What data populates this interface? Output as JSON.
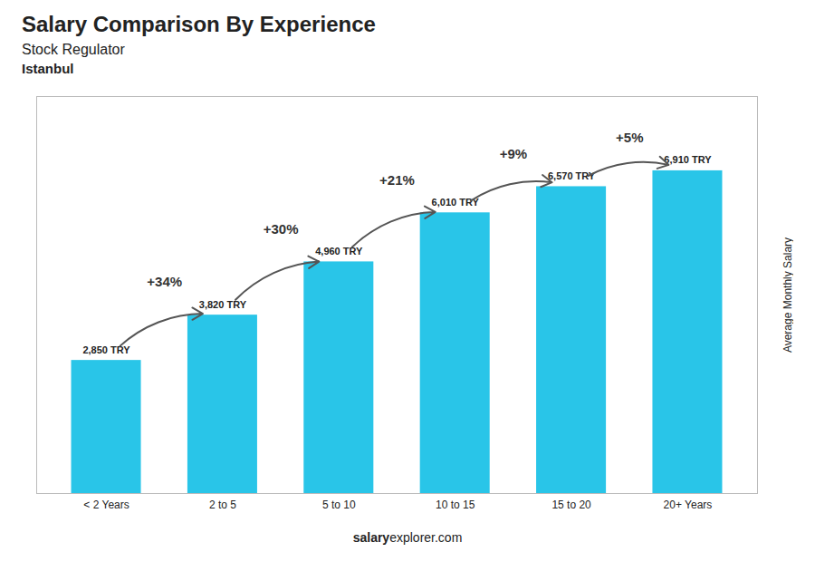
{
  "chart_data": {
    "type": "bar",
    "title": "Salary Comparison By Experience",
    "subtitle": "Stock Regulator",
    "city": "Istanbul",
    "categories": [
      "< 2 Years",
      "2 to 5",
      "5 to 10",
      "10 to 15",
      "15 to 20",
      "20+ Years"
    ],
    "values": [
      2850,
      3820,
      4960,
      6010,
      6570,
      6910
    ],
    "value_labels": [
      "2,850 TRY",
      "3,820 TRY",
      "4,960 TRY",
      "6,010 TRY",
      "6,570 TRY",
      "6,910 TRY"
    ],
    "data_labels": true,
    "color": "#29C5E8",
    "ylabel": "Average Monthly Salary",
    "ylim": [
      0,
      8500
    ],
    "tick_labels": "x",
    "grid": false,
    "annotations": [
      {
        "text": "+34%",
        "between": [
          "< 2 Years",
          "2 to 5"
        ]
      },
      {
        "text": "+30%",
        "between": [
          "2 to 5",
          "5 to 10"
        ]
      },
      {
        "text": "+21%",
        "between": [
          "5 to 10",
          "10 to 15"
        ]
      },
      {
        "text": "+9%",
        "between": [
          "10 to 15",
          "15 to 20"
        ]
      },
      {
        "text": "+5%",
        "between": [
          "15 to 20",
          "20+ Years"
        ]
      }
    ],
    "watermark": [
      "salary",
      "explorer.com"
    ]
  }
}
